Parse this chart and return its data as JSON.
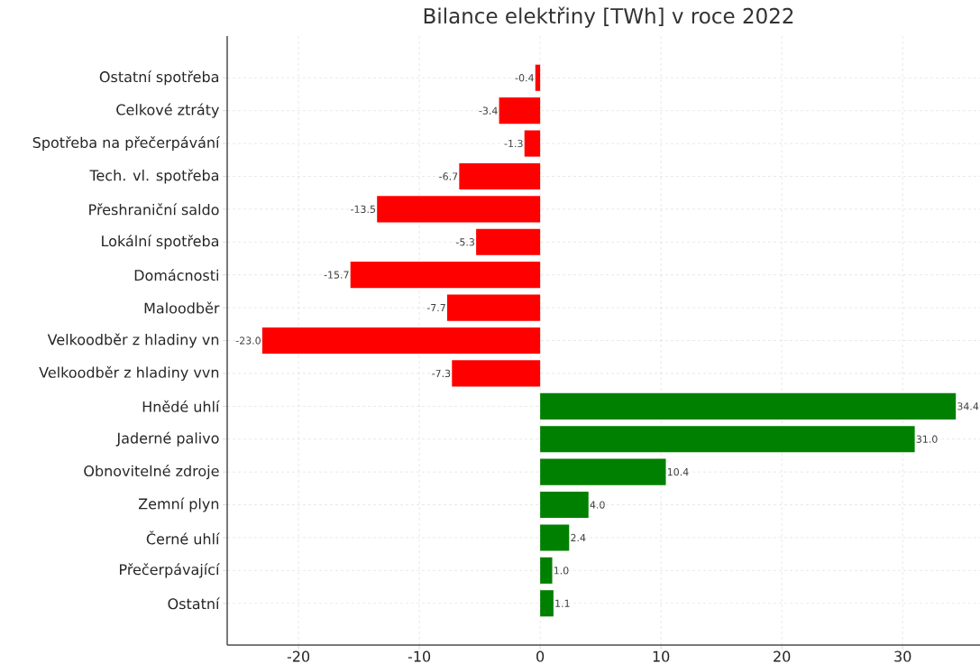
{
  "chart_data": {
    "type": "bar",
    "orientation": "horizontal",
    "title": "Bilance elektřiny [TWh] v roce 2022",
    "categories": [
      "Ostatní spotřeba",
      "Celkové ztráty",
      "Spotřeba na přečerpávání",
      "Tech. vl. spotřeba",
      "Přeshraniční saldo",
      "Lokální spotřeba",
      "Domácnosti",
      "Maloodběr",
      "Velkoodběr z hladiny vn",
      "Velkoodběr z hladiny vvn",
      "Hnědé uhlí",
      "Jaderné palivo",
      "Obnovitelné zdroje",
      "Zemní plyn",
      "Černé uhlí",
      "Přečerpávající",
      "Ostatní"
    ],
    "values": [
      -0.4,
      -3.4,
      -1.3,
      -6.7,
      -13.5,
      -5.3,
      -15.7,
      -7.7,
      -23.0,
      -7.3,
      34.4,
      31.0,
      10.4,
      4.0,
      2.4,
      1.0,
      1.1
    ],
    "value_labels": [
      "-0.4",
      "-3.4",
      "-1.3",
      "-6.7",
      "-13.5",
      "-5.3",
      "-15.7",
      "-7.7",
      "-23.0",
      "-7.3",
      "34.4",
      "31.0",
      "10.4",
      "4.0",
      "2.4",
      "1.0",
      "1.1"
    ],
    "colors": [
      "#ff0000",
      "#ff0000",
      "#ff0000",
      "#ff0000",
      "#ff0000",
      "#ff0000",
      "#ff0000",
      "#ff0000",
      "#ff0000",
      "#ff0000",
      "#008000",
      "#008000",
      "#008000",
      "#008000",
      "#008000",
      "#008000",
      "#008000"
    ],
    "xlim": [
      -25.9,
      36.4
    ],
    "xticks": [
      -20,
      -10,
      0,
      10,
      20,
      30
    ],
    "grid": true
  }
}
